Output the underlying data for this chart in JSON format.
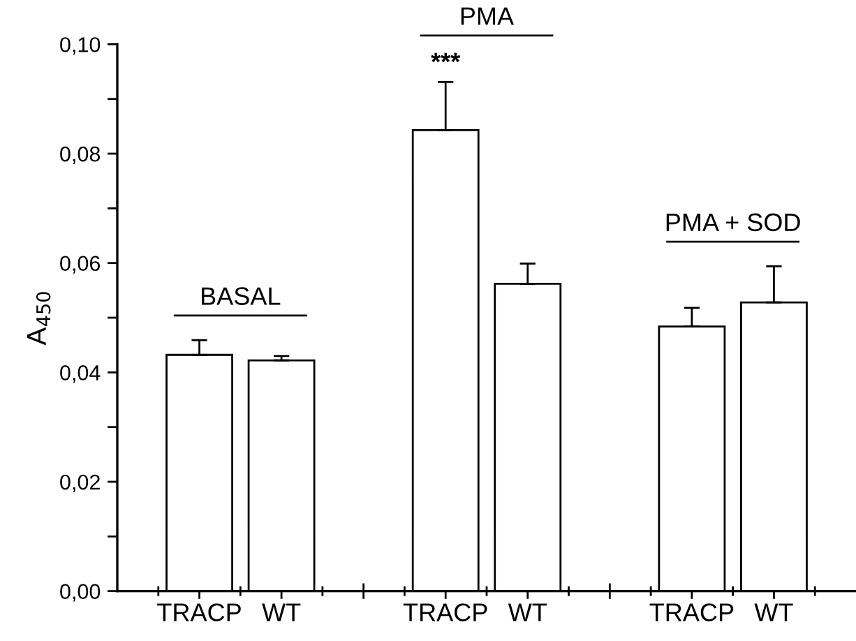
{
  "chart_data": {
    "type": "bar",
    "ylabel": "A$_{450}$",
    "categories": [
      "TRACP",
      "WT",
      null,
      "TRACP",
      "WT",
      null,
      "TRACP",
      "WT"
    ],
    "values": [
      0.0432,
      0.0422,
      null,
      0.0843,
      0.0562,
      null,
      0.0484,
      0.0528
    ],
    "color": "#ffffff",
    "errors": [
      [
        0.0432,
        0.0459
      ],
      [
        0.0422,
        0.043
      ],
      null,
      [
        0.0843,
        0.0931
      ],
      [
        0.0562,
        0.0599
      ],
      null,
      [
        0.0484,
        0.0518
      ],
      [
        0.0528,
        0.0594
      ]
    ],
    "value_labels": [
      null,
      null,
      null,
      "***",
      null,
      null,
      null,
      null
    ],
    "annotations": [
      "BASAL",
      "PMA",
      "PMA + SOD"
    ],
    "ylim": [
      0,
      0.1
    ],
    "yticks": [
      {
        "value": 0,
        "label": "0,00"
      },
      {
        "value": 0.01,
        "label": null
      },
      {
        "value": 0.02,
        "label": "0,02"
      },
      {
        "value": 0.03,
        "label": null
      },
      {
        "value": 0.04,
        "label": "0,04"
      },
      {
        "value": 0.05,
        "label": null
      },
      {
        "value": 0.06,
        "label": "0,06"
      },
      {
        "value": 0.07,
        "label": null
      },
      {
        "value": 0.08,
        "label": "0,08"
      },
      {
        "value": 0.09,
        "label": null
      },
      {
        "value": 0.1,
        "label": "0,10"
      }
    ],
    "grid": false,
    "legend": false
  }
}
